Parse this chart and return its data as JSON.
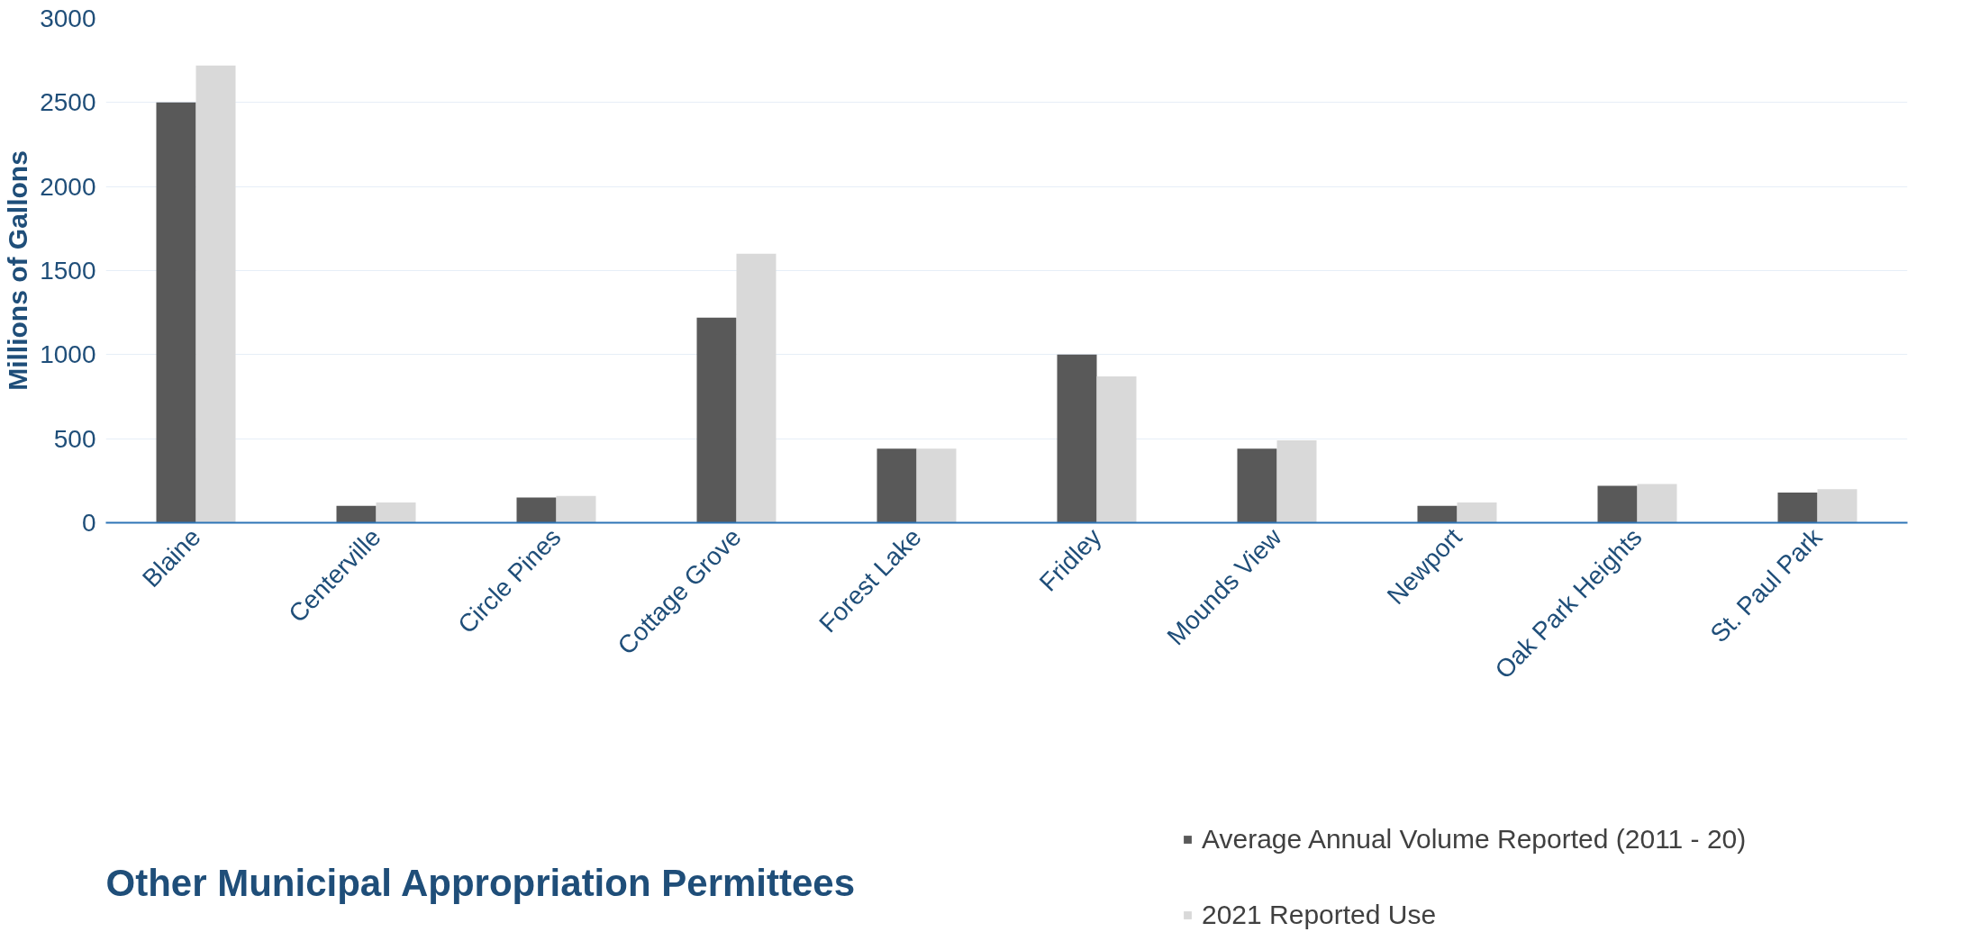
{
  "chart_data": {
    "type": "bar",
    "title": "Other Municipal Appropriation Permittees",
    "ylabel": "Millions of Gallons",
    "categories": [
      "Blaine",
      "Centerville",
      "Circle Pines",
      "Cottage Grove",
      "Forest Lake",
      "Fridley",
      "Mounds View",
      "Newport",
      "Oak Park Heights",
      "St. Paul Park"
    ],
    "series": [
      {
        "name": "Average Annual Volume Reported (2011 - 20)",
        "color": "#595959",
        "values": [
          2500,
          100,
          150,
          1220,
          440,
          1000,
          440,
          100,
          220,
          180
        ]
      },
      {
        "name": "2021 Reported Use",
        "color": "#d9d9d9",
        "values": [
          2720,
          120,
          160,
          1600,
          440,
          870,
          490,
          120,
          230,
          200
        ]
      }
    ],
    "ylim": [
      0,
      3000
    ],
    "yticks": [
      0,
      500,
      1000,
      1500,
      2000,
      2500,
      3000
    ],
    "grid": "y",
    "legend": "bottom right"
  }
}
